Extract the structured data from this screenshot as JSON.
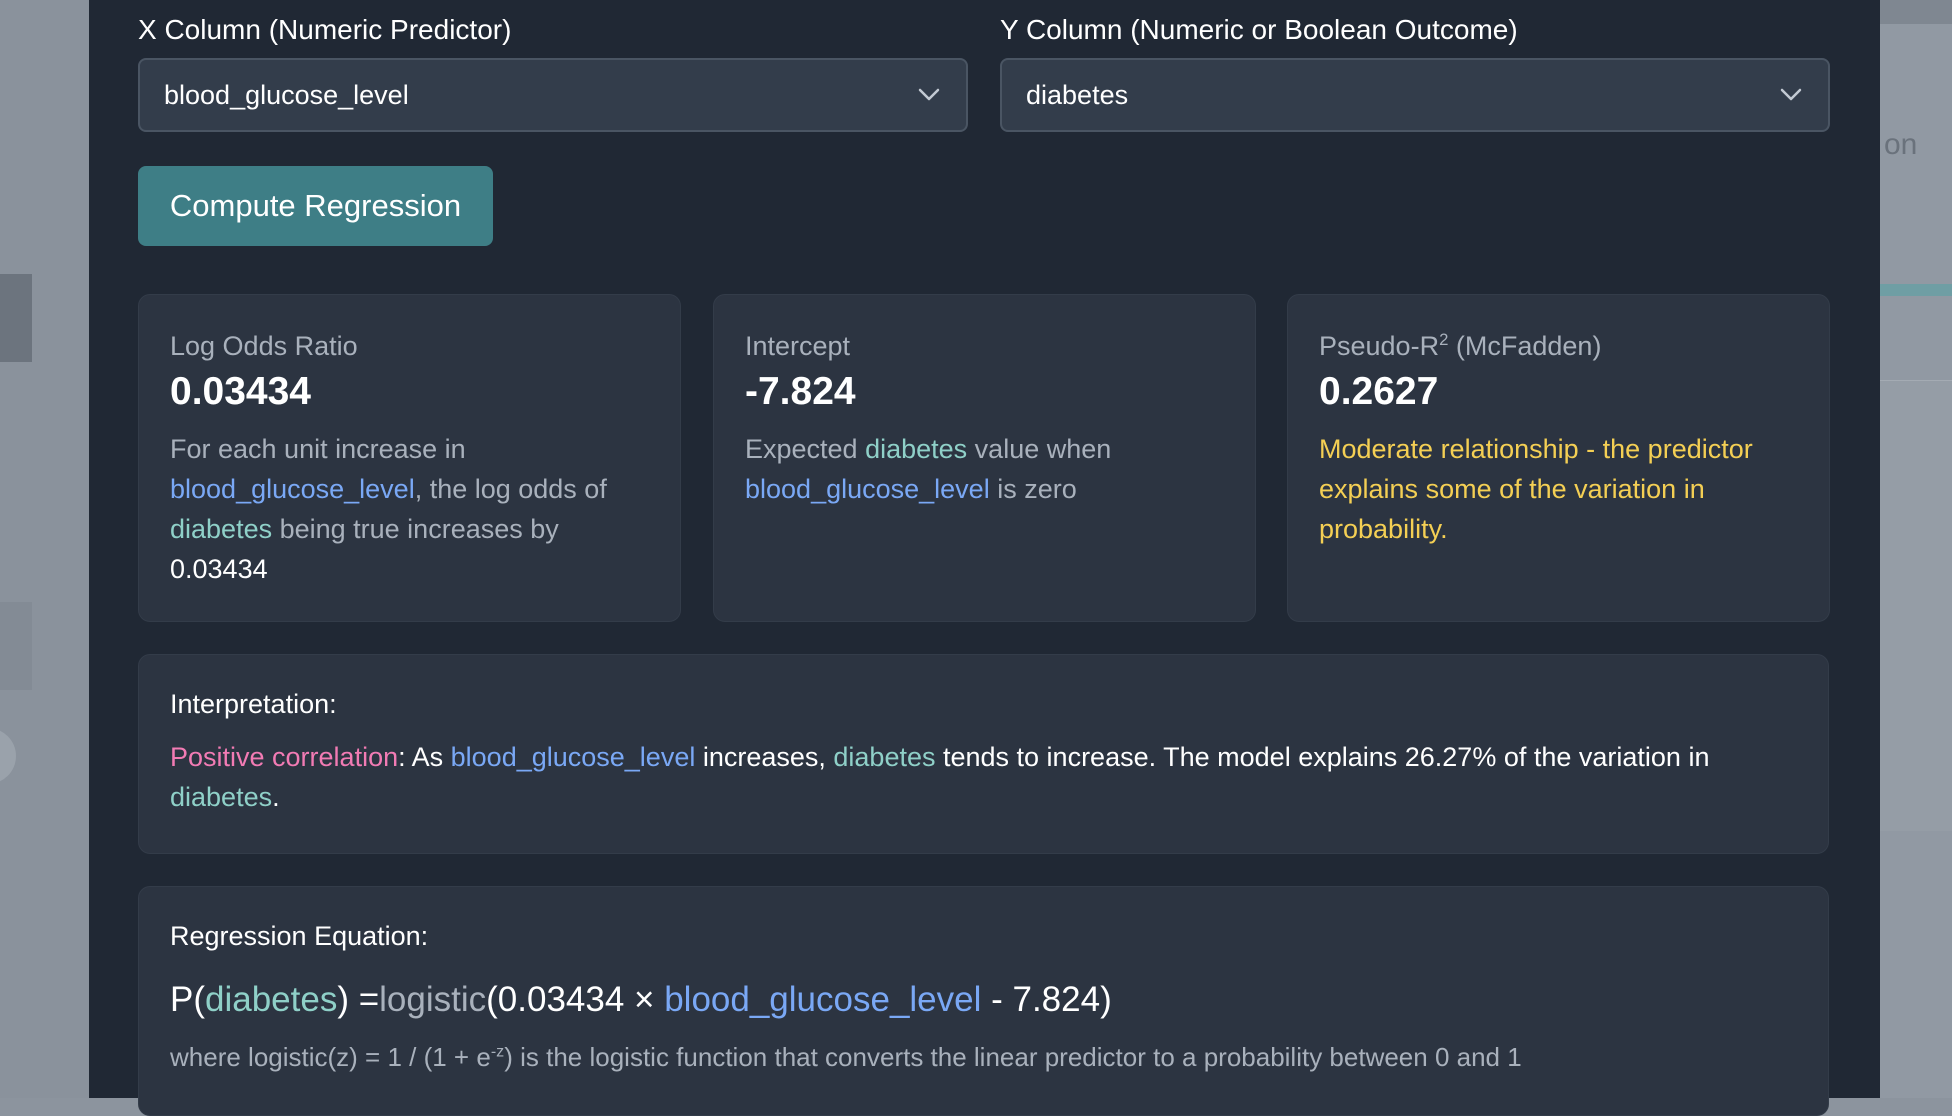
{
  "background": {
    "partial_text": "on"
  },
  "x_column": {
    "label": "X Column (Numeric Predictor)",
    "value": "blood_glucose_level"
  },
  "y_column": {
    "label": "Y Column (Numeric or Boolean Outcome)",
    "value": "diabetes"
  },
  "compute_button": "Compute Regression",
  "cards": {
    "log_odds": {
      "label": "Log Odds Ratio",
      "value": "0.03434",
      "desc_prefix": "For each unit increase in ",
      "desc_x": "blood_glucose_level",
      "desc_mid": ", the log odds of ",
      "desc_y": "diabetes",
      "desc_suffix": " being true increases by ",
      "desc_value": "0.03434"
    },
    "intercept": {
      "label": "Intercept",
      "value": "-7.824",
      "desc_prefix": "Expected ",
      "desc_y": "diabetes",
      "desc_mid": " value when ",
      "desc_x": "blood_glucose_level",
      "desc_suffix": " is zero"
    },
    "pseudo_r2": {
      "label_prefix": "Pseudo-R",
      "label_sup": "2",
      "label_suffix": " (McFadden)",
      "value": "0.2627",
      "desc": "Moderate relationship - the predictor explains some of the variation in probability."
    }
  },
  "interpretation": {
    "title": "Interpretation:",
    "correlation": "Positive correlation",
    "t1": ": As ",
    "x": "blood_glucose_level",
    "t2": " increases, ",
    "y": "diabetes",
    "t3": " tends to increase. The model explains 26.27% of the variation in ",
    "y2": "diabetes",
    "t4": "."
  },
  "equation": {
    "title": "Regression Equation:",
    "p_open": "P(",
    "y": "diabetes",
    "eq": ") =",
    "fn": "logistic",
    "paren_coef": "(0.03434 × ",
    "x": "blood_glucose_level",
    "tail": " - 7.824)",
    "note_prefix": "where logistic(z) = 1 / (1 + e",
    "note_sup": "-z",
    "note_suffix": ") is the logistic function that converts the linear predictor to a probability between 0 and 1"
  },
  "colors": {
    "modal_bg": "#202834",
    "card_bg": "#2c3441",
    "button": "#3e7e86",
    "x_var": "#7aa8f5",
    "y_var": "#8fd0c8",
    "positive": "#f27bb4",
    "moderate": "#f4cf54"
  },
  "icons": {
    "select_chevron": "chevron-down-icon"
  }
}
